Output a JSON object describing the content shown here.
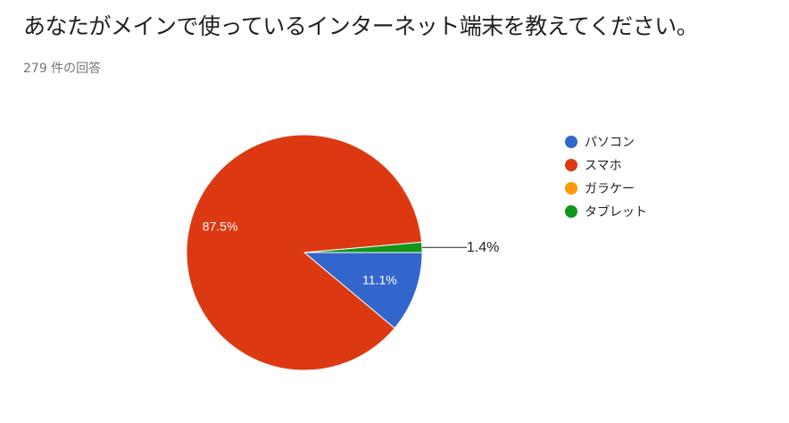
{
  "header": {
    "title": "あなたがメインで使っているインターネット端末を教えてください。",
    "response_count": "279 件の回答"
  },
  "chart_data": {
    "type": "pie",
    "categories": [
      "パソコン",
      "スマホ",
      "ガラケー",
      "タブレット"
    ],
    "values": [
      11.1,
      87.5,
      0,
      1.4
    ],
    "unit": "%",
    "colors": [
      "#3366cc",
      "#dc3912",
      "#ff9900",
      "#109618"
    ],
    "data_labels": [
      "11.1%",
      "87.5%",
      "",
      "1.4%"
    ],
    "legend_position": "right",
    "start_angle": "3 o'clock, clockwise"
  }
}
